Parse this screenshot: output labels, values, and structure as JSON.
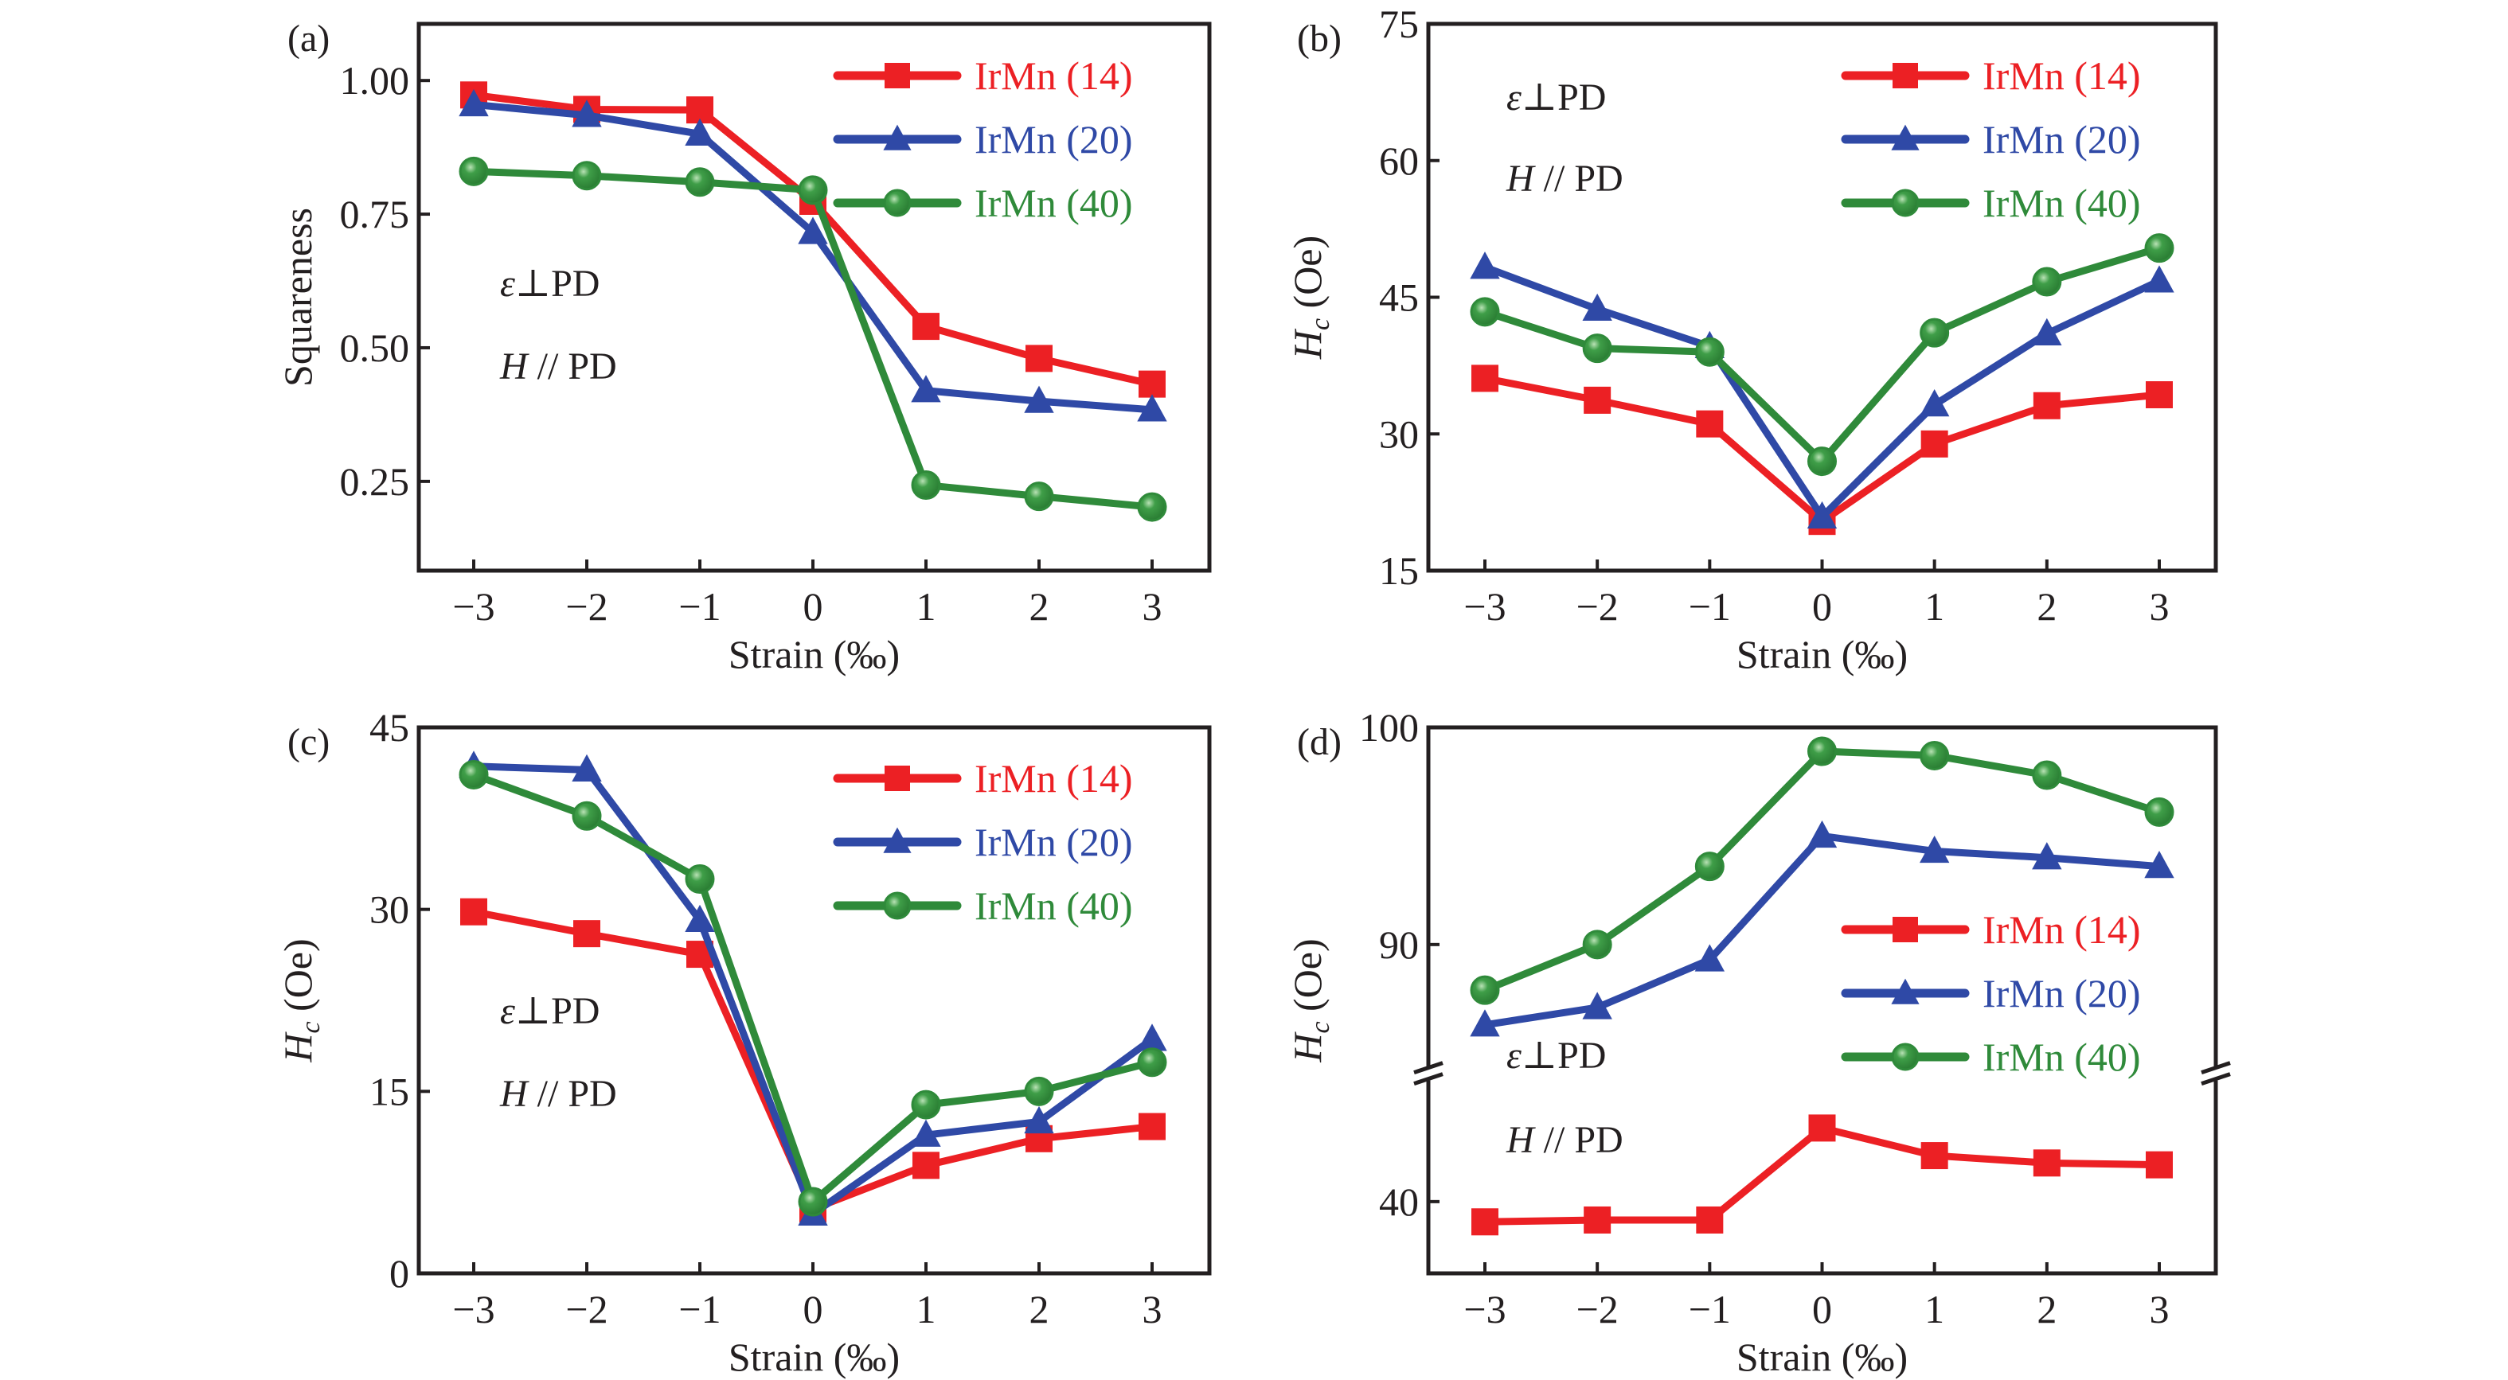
{
  "figure": {
    "colors": {
      "IrMn (14)": "#ec2024",
      "IrMn (20)": "#2f49a6",
      "IrMn (40)": "#2f8a3a",
      "axis": "#231f20"
    },
    "markers": {
      "IrMn (14)": "square",
      "IrMn (20)": "triangle",
      "IrMn (40)": "circle"
    }
  },
  "chart_data": [
    {
      "id": "a",
      "type": "line",
      "panel_label": "(a)",
      "title": "",
      "xlabel": "Strain (‰)",
      "ylabel": "Squareness",
      "ylabel_italic_prefix": "",
      "ylabel_subscript": "",
      "x": [
        -3,
        -2,
        -1,
        0,
        1,
        2,
        3
      ],
      "x_tick_labels": [
        "−3",
        "−2",
        "−1",
        "0",
        "1",
        "2",
        "3"
      ],
      "xlim": [
        -3.5,
        3.5
      ],
      "ylim": [
        0.083,
        1.106
      ],
      "y_ticks": [
        0.25,
        0.5,
        0.75,
        1.0
      ],
      "y_tick_labels": [
        "0.25",
        "0.50",
        "0.75",
        "1.00"
      ],
      "grid": false,
      "legend_position": "top-right",
      "annotations": [
        {
          "italic": "ε",
          "text": "⊥PD",
          "position": "middle-left-upper"
        },
        {
          "italic": "H",
          "text": " // PD",
          "position": "middle-left-lower"
        }
      ],
      "series": [
        {
          "name": "IrMn (14)",
          "values": [
            0.973,
            0.946,
            0.945,
            0.774,
            0.54,
            0.48,
            0.432
          ]
        },
        {
          "name": "IrMn (20)",
          "values": [
            0.955,
            0.935,
            0.9,
            0.716,
            0.42,
            0.4,
            0.384
          ]
        },
        {
          "name": "IrMn (40)",
          "values": [
            0.83,
            0.822,
            0.81,
            0.795,
            0.243,
            0.222,
            0.202
          ]
        }
      ]
    },
    {
      "id": "b",
      "type": "line",
      "panel_label": "(b)",
      "title": "",
      "xlabel": "Strain (‰)",
      "ylabel": " (Oe)",
      "ylabel_italic_prefix": "H",
      "ylabel_subscript": "c",
      "x": [
        -3,
        -2,
        -1,
        0,
        1,
        2,
        3
      ],
      "x_tick_labels": [
        "−3",
        "−2",
        "−1",
        "0",
        "1",
        "2",
        "3"
      ],
      "xlim": [
        -3.5,
        3.5
      ],
      "ylim": [
        15,
        75
      ],
      "y_ticks": [
        15,
        30,
        45,
        60,
        75
      ],
      "y_tick_labels": [
        "15",
        "30",
        "45",
        "60",
        "75"
      ],
      "grid": false,
      "legend_position": "top-right",
      "annotations": [
        {
          "italic": "ε",
          "text": "⊥PD",
          "position": "top-left-upper"
        },
        {
          "italic": "H",
          "text": " // PD",
          "position": "top-left-lower"
        }
      ],
      "series": [
        {
          "name": "IrMn (14)",
          "values": [
            36.1,
            33.7,
            31.1,
            20.4,
            28.9,
            33.1,
            34.3
          ]
        },
        {
          "name": "IrMn (20)",
          "values": [
            48.3,
            43.7,
            39.6,
            20.9,
            33.2,
            41.0,
            46.8
          ]
        },
        {
          "name": "IrMn (40)",
          "values": [
            43.4,
            39.4,
            39.0,
            27.0,
            41.1,
            46.7,
            50.4
          ]
        }
      ]
    },
    {
      "id": "c",
      "type": "line",
      "panel_label": "(c)",
      "title": "",
      "xlabel": "Strain (‰)",
      "ylabel": " (Oe)",
      "ylabel_italic_prefix": "H",
      "ylabel_subscript": "c",
      "x": [
        -3,
        -2,
        -1,
        0,
        1,
        2,
        3
      ],
      "x_tick_labels": [
        "−3",
        "−2",
        "−1",
        "0",
        "1",
        "2",
        "3"
      ],
      "xlim": [
        -3.5,
        3.5
      ],
      "ylim": [
        0,
        45
      ],
      "y_ticks": [
        0,
        15,
        30,
        45
      ],
      "y_tick_labels": [
        "0",
        "15",
        "30",
        "45"
      ],
      "grid": false,
      "legend_position": "top-right",
      "annotations": [
        {
          "italic": "ε",
          "text": "⊥PD",
          "position": "middle-left-upper"
        },
        {
          "italic": "H",
          "text": " // PD",
          "position": "middle-left-lower"
        }
      ],
      "series": [
        {
          "name": "IrMn (14)",
          "values": [
            29.8,
            28.0,
            26.3,
            5.3,
            8.9,
            11.1,
            12.1
          ]
        },
        {
          "name": "IrMn (20)",
          "values": [
            41.8,
            41.5,
            29.1,
            4.9,
            11.4,
            12.5,
            19.3
          ]
        },
        {
          "name": "IrMn (40)",
          "values": [
            41.1,
            37.7,
            32.5,
            5.9,
            13.9,
            15.0,
            17.4
          ]
        }
      ]
    },
    {
      "id": "d",
      "type": "line",
      "panel_label": "(d)",
      "title": "",
      "xlabel": "Strain (‰)",
      "ylabel": " (Oe)",
      "ylabel_italic_prefix": "H",
      "ylabel_subscript": "c",
      "x": [
        -3,
        -2,
        -1,
        0,
        1,
        2,
        3
      ],
      "x_tick_labels": [
        "−3",
        "−2",
        "−1",
        "0",
        "1",
        "2",
        "3"
      ],
      "xlim": [
        -3.5,
        3.5
      ],
      "broken_axis": true,
      "ylim_upper": [
        84.4,
        100
      ],
      "ylim_lower": [
        36.1,
        46.5
      ],
      "y_ticks": [
        40,
        90,
        100
      ],
      "y_tick_labels": [
        "40",
        "90",
        "100"
      ],
      "grid": false,
      "legend_position": "middle-right",
      "annotations": [
        {
          "italic": "ε",
          "text": "⊥PD",
          "position": "near-break"
        },
        {
          "italic": "H",
          "text": " // PD",
          "position": "below-break"
        }
      ],
      "series": [
        {
          "name": "IrMn (14)",
          "segment": "lower",
          "values": [
            38.9,
            39.0,
            39.0,
            44.0,
            42.5,
            42.1,
            42.0
          ]
        },
        {
          "name": "IrMn (20)",
          "segment": "upper",
          "values": [
            86.3,
            87.1,
            89.3,
            95.0,
            94.3,
            94.0,
            93.6
          ]
        },
        {
          "name": "IrMn (40)",
          "segment": "upper",
          "values": [
            87.9,
            90.0,
            93.6,
            98.9,
            98.7,
            97.8,
            96.1
          ]
        }
      ]
    }
  ]
}
